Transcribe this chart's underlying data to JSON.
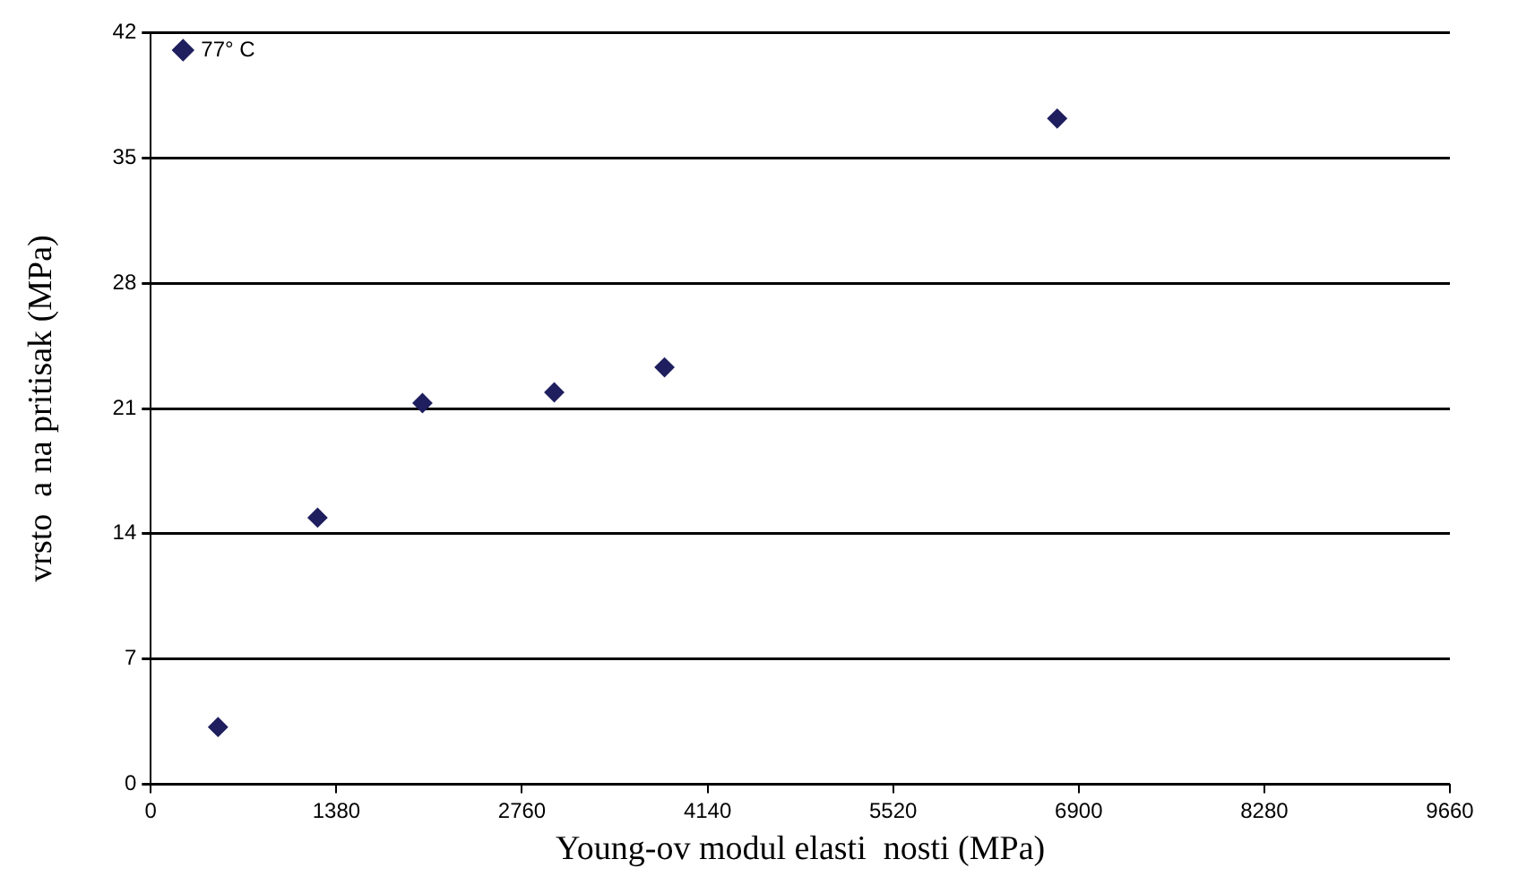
{
  "chart_data": {
    "type": "scatter",
    "xlabel": "Young-ov modul elasti  nosti (MPa)",
    "ylabel": "vrsto  a na pritisak (MPa)",
    "x": [
      500,
      1240,
      2020,
      3000,
      3820,
      6740
    ],
    "series": [
      {
        "name": "77° C",
        "color": "#1f1f5f",
        "values": [
          3.2,
          14.9,
          21.3,
          21.9,
          23.3,
          37.2
        ]
      }
    ],
    "xlim": [
      0,
      9660
    ],
    "xticks": [
      0,
      1380,
      2760,
      4140,
      5520,
      6900,
      8280,
      9660
    ],
    "ylim": [
      0,
      42
    ],
    "yticks": [
      0,
      7,
      14,
      21,
      28,
      35,
      42
    ],
    "grid": "y",
    "legend": "top left",
    "marker": "diamond"
  }
}
